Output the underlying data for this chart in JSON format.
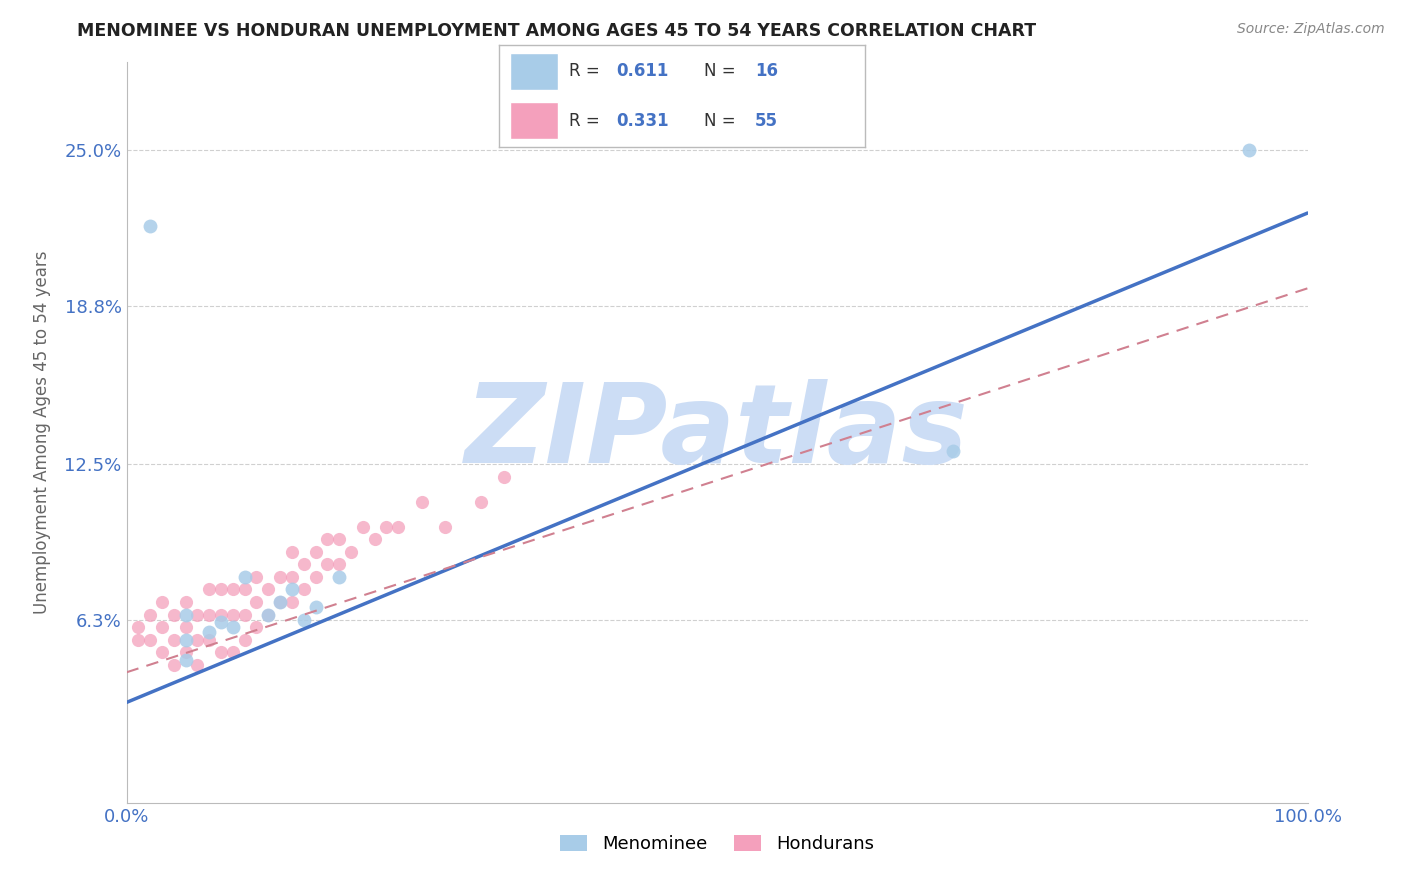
{
  "title": "MENOMINEE VS HONDURAN UNEMPLOYMENT AMONG AGES 45 TO 54 YEARS CORRELATION CHART",
  "source": "Source: ZipAtlas.com",
  "ylabel": "Unemployment Among Ages 45 to 54 years",
  "xlim": [
    0.0,
    1.0
  ],
  "ylim": [
    -0.01,
    0.285
  ],
  "yticks": [
    0.063,
    0.125,
    0.188,
    0.25
  ],
  "ytick_labels": [
    "6.3%",
    "12.5%",
    "18.8%",
    "25.0%"
  ],
  "xticks": [
    0.0,
    1.0
  ],
  "xtick_labels": [
    "0.0%",
    "100.0%"
  ],
  "menominee_R": 0.611,
  "menominee_N": 16,
  "honduran_R": 0.331,
  "honduran_N": 55,
  "menominee_color": "#a8cce8",
  "honduran_color": "#f4a0bc",
  "menominee_line_color": "#4472c4",
  "honduran_line_color": "#d08090",
  "honduran_line_dash_color": "#c0a0a8",
  "watermark": "ZIPatlas",
  "watermark_color": "#ccddf5",
  "legend_label_menominee": "Menominee",
  "legend_label_hondurans": "Hondurans",
  "menominee_x": [
    0.02,
    0.05,
    0.05,
    0.07,
    0.08,
    0.09,
    0.1,
    0.12,
    0.13,
    0.14,
    0.15,
    0.16,
    0.18,
    0.7,
    0.95,
    0.05
  ],
  "menominee_y": [
    0.22,
    0.055,
    0.065,
    0.058,
    0.062,
    0.06,
    0.08,
    0.065,
    0.07,
    0.075,
    0.063,
    0.068,
    0.08,
    0.13,
    0.25,
    0.047
  ],
  "honduran_x": [
    0.01,
    0.01,
    0.02,
    0.02,
    0.03,
    0.03,
    0.03,
    0.04,
    0.04,
    0.04,
    0.05,
    0.05,
    0.05,
    0.06,
    0.06,
    0.06,
    0.07,
    0.07,
    0.07,
    0.08,
    0.08,
    0.08,
    0.09,
    0.09,
    0.09,
    0.1,
    0.1,
    0.1,
    0.11,
    0.11,
    0.11,
    0.12,
    0.12,
    0.13,
    0.13,
    0.14,
    0.14,
    0.14,
    0.15,
    0.15,
    0.16,
    0.16,
    0.17,
    0.17,
    0.18,
    0.18,
    0.19,
    0.2,
    0.21,
    0.22,
    0.23,
    0.25,
    0.27,
    0.3,
    0.32
  ],
  "honduran_y": [
    0.055,
    0.06,
    0.055,
    0.065,
    0.05,
    0.06,
    0.07,
    0.045,
    0.055,
    0.065,
    0.05,
    0.06,
    0.07,
    0.045,
    0.055,
    0.065,
    0.055,
    0.065,
    0.075,
    0.05,
    0.065,
    0.075,
    0.05,
    0.065,
    0.075,
    0.055,
    0.065,
    0.075,
    0.06,
    0.07,
    0.08,
    0.065,
    0.075,
    0.07,
    0.08,
    0.07,
    0.08,
    0.09,
    0.075,
    0.085,
    0.08,
    0.09,
    0.085,
    0.095,
    0.085,
    0.095,
    0.09,
    0.1,
    0.095,
    0.1,
    0.1,
    0.11,
    0.1,
    0.11,
    0.12
  ],
  "men_line_x0": 0.0,
  "men_line_y0": 0.03,
  "men_line_x1": 1.0,
  "men_line_y1": 0.225,
  "hon_line_x0": 0.0,
  "hon_line_y0": 0.042,
  "hon_line_x1": 1.0,
  "hon_line_y1": 0.195
}
